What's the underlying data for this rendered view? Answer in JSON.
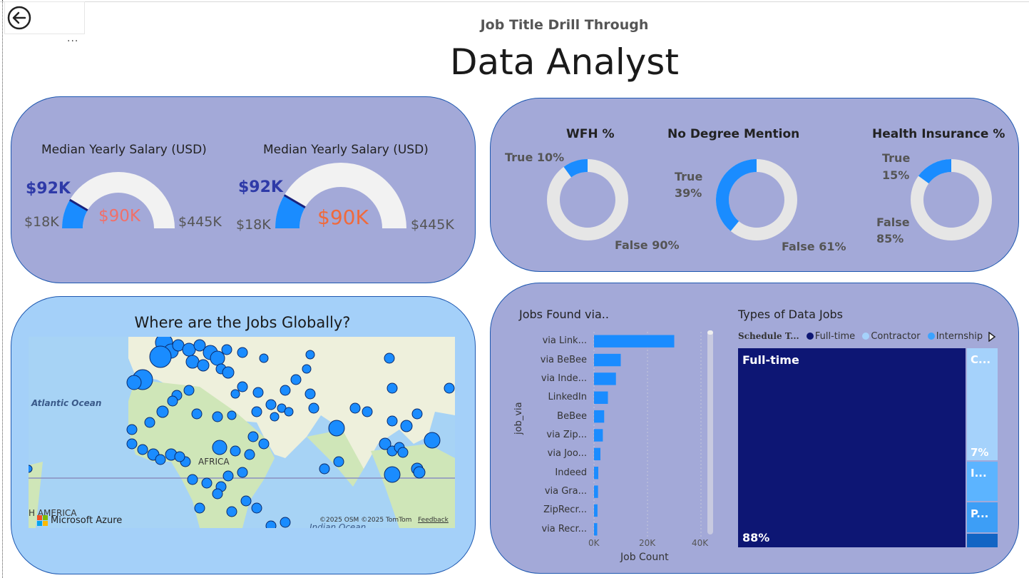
{
  "header": {
    "subtitle": "Job Title Drill Through",
    "title": "Data Analyst",
    "more_options": "..."
  },
  "salary_gauges": [
    {
      "title": "Median Yearly Salary (USD)",
      "value_label": "$92K",
      "target_label": "$90K",
      "min_label": "$18K",
      "max_label": "$445K",
      "value": 92,
      "target": 90,
      "min": 18,
      "max": 445
    },
    {
      "title": "Median Yearly Salary (USD)",
      "value_label": "$92K",
      "target_label": "$90K",
      "min_label": "$18K",
      "max_label": "$445K",
      "value": 92,
      "target": 90,
      "min": 18,
      "max": 445
    }
  ],
  "donuts": [
    {
      "title": "WFH %",
      "true_label": "True 10%",
      "false_label": "False 90%",
      "true_pct": 10
    },
    {
      "title": "No Degree Mention",
      "true_label_1": "True",
      "true_label_2": "39%",
      "false_label": "False 61%",
      "true_pct": 39
    },
    {
      "title": "Health Insurance %",
      "true_label_1": "True",
      "true_label_2": "15%",
      "false_label_1": "False",
      "false_label_2": "85%",
      "true_pct": 15
    }
  ],
  "map": {
    "title": "Where are the Jobs Globally?",
    "labels": {
      "atlantic": "Atlantic Ocean",
      "africa": "AFRICA",
      "indian": "Indian Ocean",
      "america": "H AMERICA"
    },
    "brand": "Microsoft Azure",
    "attribution": "©2025 OSM  ©2025 TomTom",
    "feedback": "Feedback"
  },
  "jobs_via": {
    "title": "Jobs Found via..",
    "y_axis_label": "job_via",
    "x_axis_label": "Job Count",
    "x_ticks": [
      "0K",
      "20K",
      "40K"
    ],
    "chart_data": {
      "type": "bar",
      "orientation": "horizontal",
      "categories": [
        "via Link...",
        "via BeBee",
        "via Inde...",
        "LinkedIn",
        "BeBee",
        "via Zip...",
        "via Joo...",
        "Indeed",
        "via Gra...",
        "ZipRecr...",
        "via Recr..."
      ],
      "values": [
        30000,
        10000,
        8200,
        5200,
        3800,
        3300,
        2400,
        1600,
        1500,
        1300,
        1200
      ],
      "xlim": [
        0,
        40000
      ]
    }
  },
  "job_types": {
    "title": "Types of Data Jobs",
    "legend_title": "Schedule T...",
    "legend": [
      {
        "label": "Full-time",
        "color": "#0d1674"
      },
      {
        "label": "Contractor",
        "color": "#a5d2fb"
      },
      {
        "label": "Internship",
        "color": "#3ba2ff"
      }
    ],
    "tiles": [
      {
        "label": "Full-time",
        "pct": "88%",
        "color": "#0d1674"
      },
      {
        "label": "C...",
        "pct": "7%",
        "color": "#a5d2fb"
      },
      {
        "label": "I...",
        "color": "#5cb4ff"
      },
      {
        "label": "P...",
        "color": "#3d9ef6"
      }
    ]
  },
  "colors": {
    "accent": "#1a8cff",
    "card": "#a3a9d8",
    "orange": "#f06a3c",
    "navy": "#2e3aa8"
  }
}
